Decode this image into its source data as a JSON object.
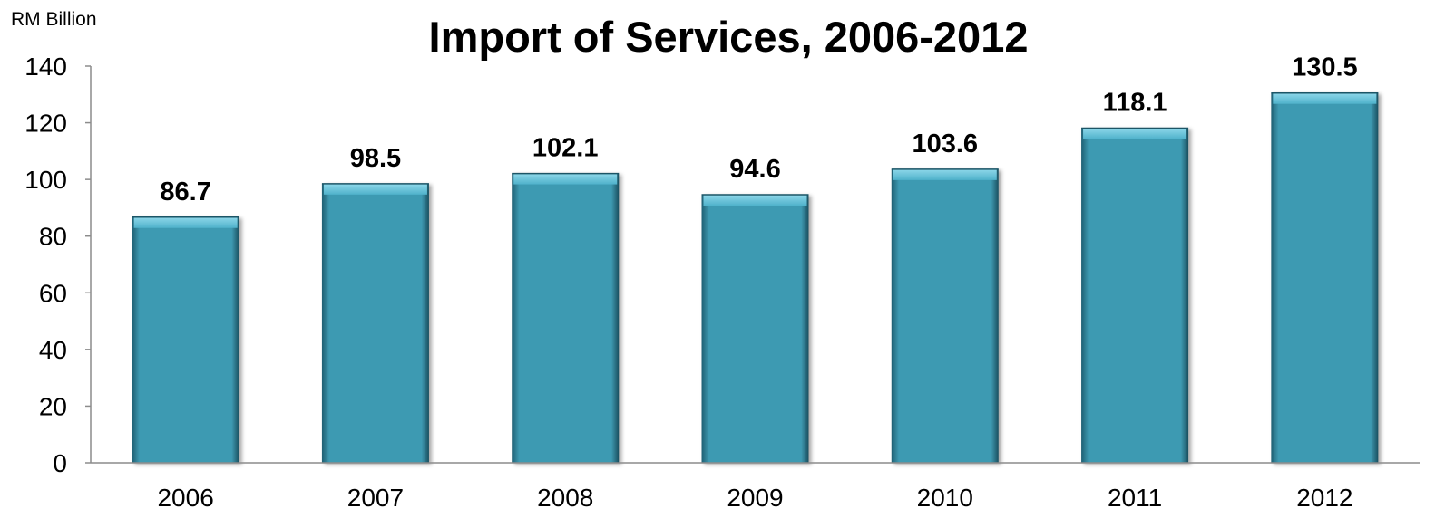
{
  "chart_data": {
    "type": "bar",
    "title": "Import of Services, 2006-2012",
    "ylabel": "RM Billion",
    "xlabel": "",
    "categories": [
      "2006",
      "2007",
      "2008",
      "2009",
      "2010",
      "2011",
      "2012"
    ],
    "values": [
      86.7,
      98.5,
      102.1,
      94.6,
      103.6,
      118.1,
      130.5
    ],
    "value_labels": [
      "86.7",
      "98.5",
      "102.1",
      "94.6",
      "103.6",
      "118.1",
      "130.5"
    ],
    "ylim": [
      0,
      140
    ],
    "yticks": [
      "0",
      "20",
      "40",
      "60",
      "80",
      "100",
      "120",
      "140"
    ],
    "grid": false,
    "legend": "none",
    "bar_color": "#3e9ab2",
    "bar_top_color": "#6fc6dd",
    "bar_edge_color": "#1d5566"
  }
}
